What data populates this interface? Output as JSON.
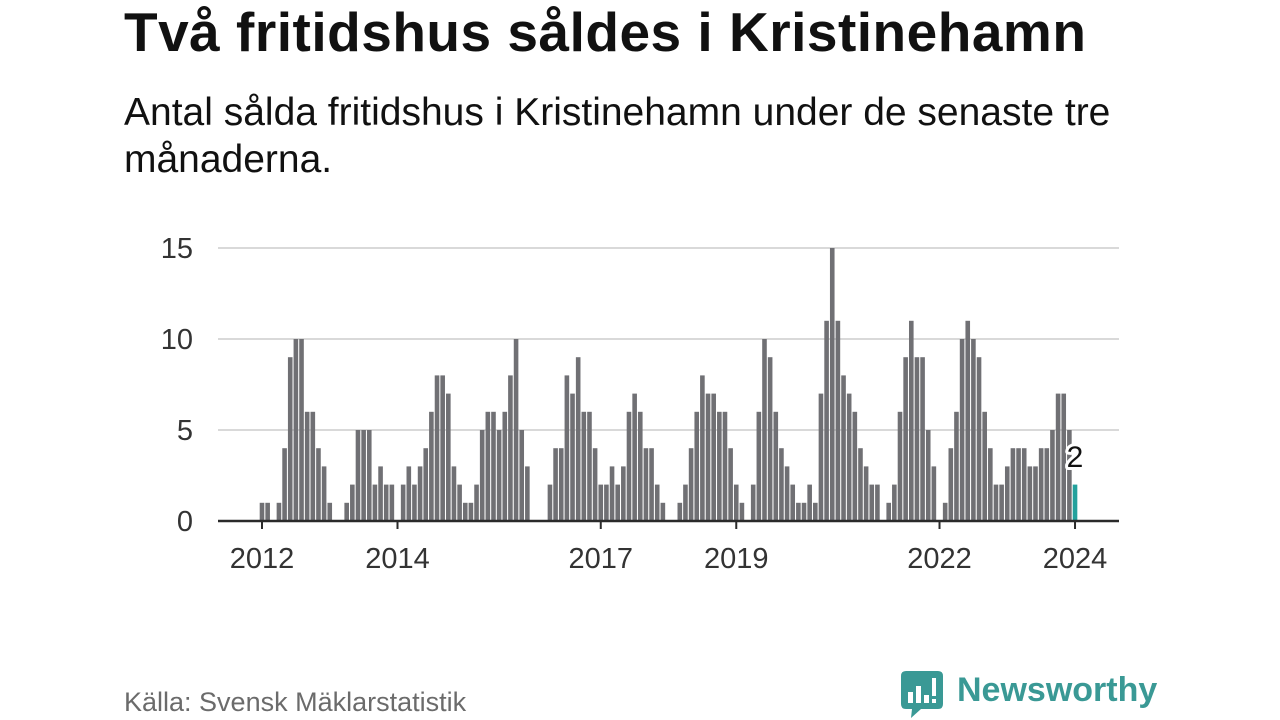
{
  "chart_data": {
    "type": "bar",
    "title": "Två fritidshus såldes i Kristinehamn",
    "subtitle": "Antal sålda fritidshus i Kristinehamn under de senaste tre månaderna.",
    "xlabel": "",
    "ylabel": "",
    "ylim": [
      0,
      15
    ],
    "yticks": [
      0,
      5,
      10,
      15
    ],
    "grid": true,
    "start_year": 2012,
    "start_month": 1,
    "values": [
      1,
      1,
      0,
      1,
      4,
      9,
      10,
      10,
      6,
      6,
      4,
      3,
      1,
      0,
      0,
      1,
      2,
      5,
      5,
      5,
      2,
      3,
      2,
      2,
      0,
      2,
      3,
      2,
      3,
      4,
      6,
      8,
      8,
      7,
      3,
      2,
      1,
      1,
      2,
      5,
      6,
      6,
      5,
      6,
      8,
      10,
      5,
      3,
      0,
      0,
      0,
      2,
      4,
      4,
      8,
      7,
      9,
      6,
      6,
      4,
      2,
      2,
      3,
      2,
      3,
      6,
      7,
      6,
      4,
      4,
      2,
      1,
      0,
      0,
      1,
      2,
      4,
      6,
      8,
      7,
      7,
      6,
      6,
      4,
      2,
      1,
      0,
      2,
      6,
      10,
      9,
      6,
      4,
      3,
      2,
      1,
      1,
      2,
      1,
      7,
      11,
      15,
      11,
      8,
      7,
      6,
      4,
      3,
      2,
      2,
      0,
      1,
      2,
      6,
      9,
      11,
      9,
      9,
      5,
      3,
      0,
      1,
      4,
      6,
      10,
      11,
      10,
      9,
      6,
      4,
      2,
      2,
      3,
      4,
      4,
      4,
      3,
      3,
      4,
      4,
      5,
      7,
      7,
      5,
      2
    ],
    "x_ticks": [
      2012,
      2014,
      2017,
      2019,
      2022,
      2024
    ],
    "highlight": {
      "year": 2024,
      "month": 1,
      "value": 2,
      "label": "2"
    }
  },
  "footer": {
    "source": "Källa: Svensk Mäklarstatistik",
    "brand": "Newsworthy",
    "brand_icon": "newsworthy-logo-icon"
  },
  "colors": {
    "text": "#111111",
    "muted": "#6b6b6b",
    "bar": "#707074",
    "highlight": "#24a19c",
    "grid": "#d9d9d9",
    "axis": "#2a2a2a",
    "brand": "#3a9995"
  }
}
